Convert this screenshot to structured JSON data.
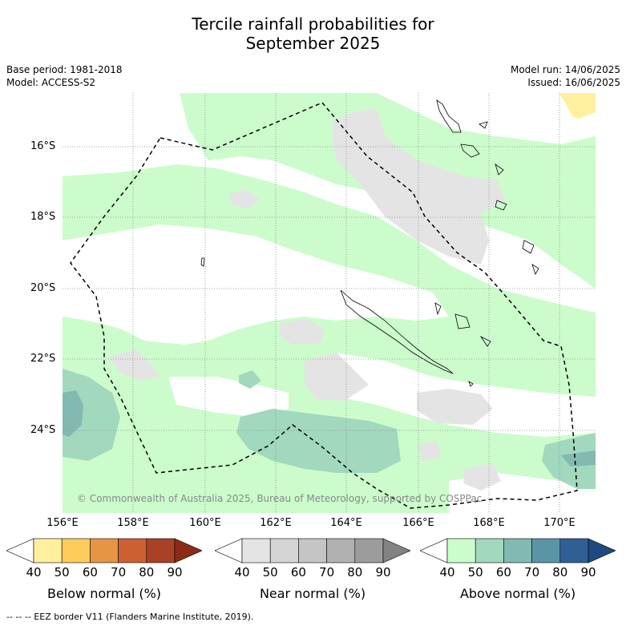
{
  "title_line1": "Tercile rainfall probabilities for",
  "title_line2": "September 2025",
  "meta_left": [
    "Base period: 1981-2018",
    "Model: ACCESS-S2"
  ],
  "meta_right": [
    "Model run: 14/06/2025",
    "Issued: 16/06/2025"
  ],
  "copyright": "© Commonwealth of Australia 2025, Bureau of Meteorology, supported by COSPPac",
  "lon_labels": [
    "156°E",
    "158°E",
    "160°E",
    "162°E",
    "164°E",
    "166°E",
    "168°E",
    "170°E"
  ],
  "lat_labels": [
    "16°S",
    "18°S",
    "20°S",
    "22°S",
    "24°S"
  ],
  "colorbars": [
    {
      "label": "Below normal (%)",
      "ticks": [
        "40",
        "50",
        "60",
        "70",
        "80",
        "90"
      ],
      "colors": [
        "#ffffff",
        "#fff0a0",
        "#fecc5c",
        "#e59545",
        "#cc6033",
        "#a94127",
        "#8c2a18"
      ]
    },
    {
      "label": "Near normal (%)",
      "ticks": [
        "40",
        "50",
        "60",
        "70",
        "80",
        "90"
      ],
      "colors": [
        "#ffffff",
        "#e4e4e4",
        "#d5d5d5",
        "#c5c5c5",
        "#b1b1b1",
        "#9c9c9c",
        "#828282"
      ]
    },
    {
      "label": "Above normal (%)",
      "ticks": [
        "40",
        "50",
        "60",
        "70",
        "80",
        "90"
      ],
      "colors": [
        "#ffffff",
        "#ccfccc",
        "#a2d8bd",
        "#82b9b0",
        "#5a95a5",
        "#305f96",
        "#1e4a80"
      ]
    }
  ],
  "footnote": "--  --  -- EEZ border V11 (Flanders Marine Institute, 2019)."
}
